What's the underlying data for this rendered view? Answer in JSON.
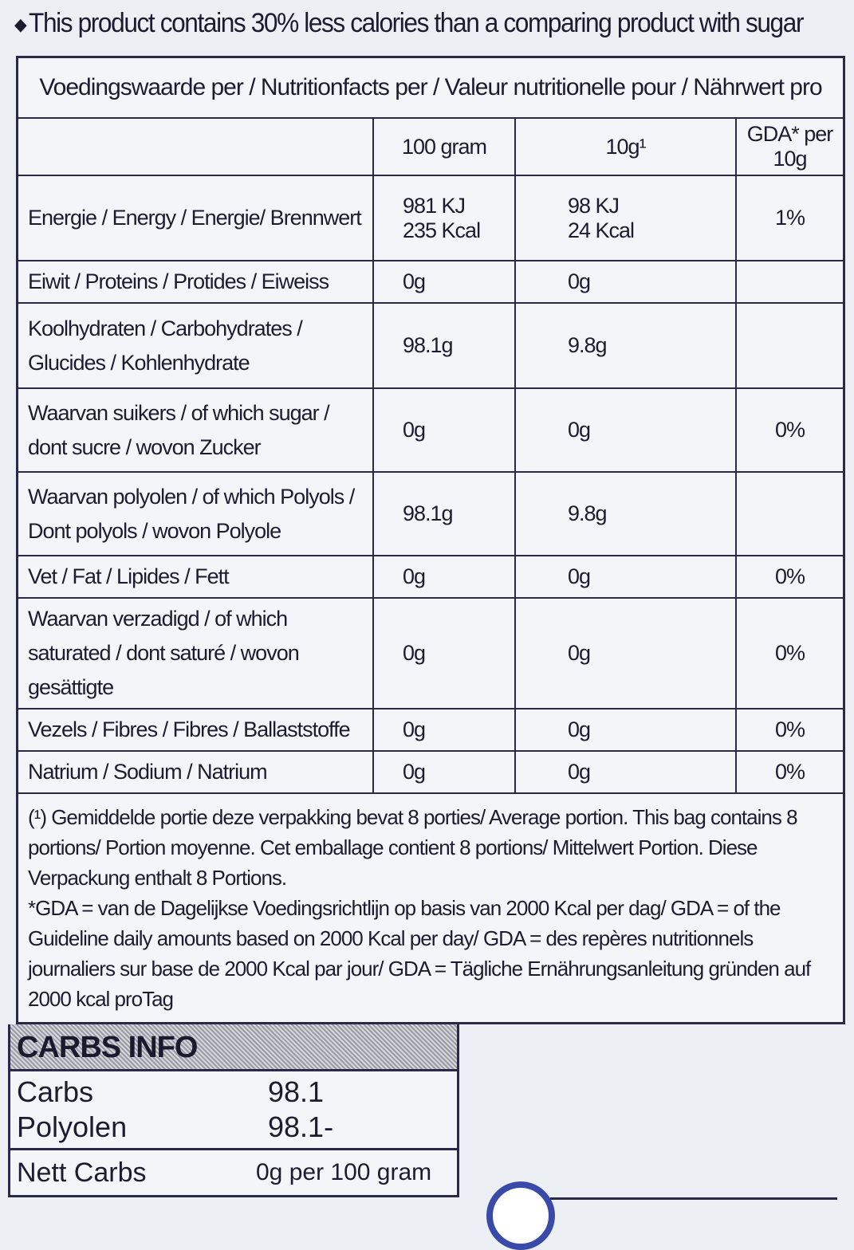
{
  "claim": {
    "icon": "diamond-bullet-icon",
    "text": "This product contains 30% less calories than a comparing product with sugar"
  },
  "table": {
    "title": "Voedingswaarde per / Nutritionfacts per / Valeur nutritionelle pour / Nährwert pro",
    "columns": [
      "",
      "100 gram",
      "10g¹",
      "GDA* per 10g"
    ],
    "rows": [
      {
        "label": "Energie / Energy / Energie/ Brennwert",
        "v100": "981 KJ\n235 Kcal",
        "v10": "98 KJ\n24 Kcal",
        "gda": "1%"
      },
      {
        "label": "Eiwit /  Proteins / Protides / Eiweiss",
        "v100": "0g",
        "v10": "0g",
        "gda": ""
      },
      {
        "label": "Koolhydraten / Carbohydrates / Glucides / Kohlenhydrate",
        "v100": "98.1g",
        "v10": "9.8g",
        "gda": ""
      },
      {
        "label": "Waarvan suikers / of which sugar / dont sucre / wovon Zucker",
        "v100": "0g",
        "v10": "0g",
        "gda": "0%"
      },
      {
        "label": "Waarvan polyolen / of which Polyols / Dont polyols / wovon Polyole",
        "v100": "98.1g",
        "v10": "9.8g",
        "gda": ""
      },
      {
        "label": "Vet / Fat / Lipides / Fett",
        "v100": "0g",
        "v10": "0g",
        "gda": "0%"
      },
      {
        "label": "Waarvan verzadigd / of which saturated / dont saturé / wovon gesättigte",
        "v100": "0g",
        "v10": "0g",
        "gda": "0%"
      },
      {
        "label": "Vezels / Fibres / Fibres / Ballaststoffe",
        "v100": "0g",
        "v10": "0g",
        "gda": "0%"
      },
      {
        "label": "Natrium / Sodium / Natrium",
        "v100": "0g",
        "v10": "0g",
        "gda": "0%"
      }
    ],
    "footnote": "(¹) Gemiddelde portie deze verpakking bevat 8 porties/ Average portion. This bag contains 8 portions/ Portion moyenne. Cet emballage contient 8 portions/ Mittelwert Portion. Diese Verpackung enthalt 8 Portions.\n*GDA = van de Dagelijkse Voedingsrichtlijn op basis van 2000 Kcal per dag/ GDA = of the Guideline daily amounts based on 2000 Kcal per day/ GDA = des repères nutritionnels journaliers sur base de 2000 Kcal par jour/ GDA = Tägliche Ernährungsanleitung gründen auf 2000 kcal proTag"
  },
  "carbs_info": {
    "title": "CARBS INFO",
    "rows": [
      {
        "k": "Carbs",
        "v": "98.1"
      },
      {
        "k": "Polyolen",
        "v": "98.1-"
      }
    ],
    "nett": {
      "k": "Nett Carbs",
      "v": "0g per 100 gram"
    }
  }
}
